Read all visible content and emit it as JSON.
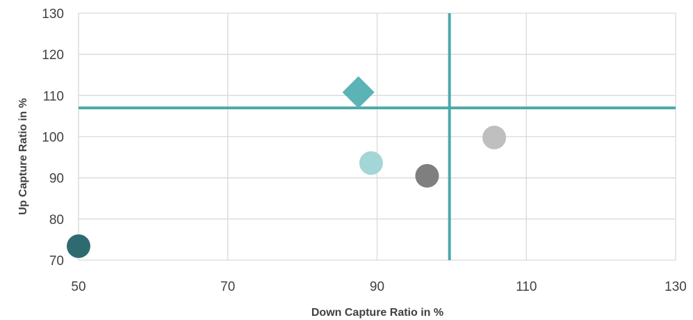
{
  "chart_data": {
    "type": "scatter",
    "xlabel": "Down Capture Ratio in %",
    "ylabel": "Up Capture Ratio in %",
    "xlim": [
      50,
      130
    ],
    "ylim": [
      70,
      130
    ],
    "xticks": [
      "50",
      "70",
      "90",
      "110",
      "130"
    ],
    "yticks": [
      "70",
      "80",
      "90",
      "100",
      "110",
      "120",
      "130"
    ],
    "grid": true,
    "reference_lines": {
      "vertical_x": 99.7,
      "horizontal_y": 107,
      "color": "#4BA9A9"
    },
    "points": [
      {
        "x": 87.5,
        "y": 110.8,
        "marker": "diamond",
        "color": "#5BB3B5"
      },
      {
        "x": 89.2,
        "y": 93.6,
        "marker": "circle",
        "color": "#A3D6D6"
      },
      {
        "x": 96.7,
        "y": 90.5,
        "marker": "circle",
        "color": "#7F7F7F"
      },
      {
        "x": 105.7,
        "y": 99.8,
        "marker": "circle",
        "color": "#BFBFBF"
      },
      {
        "x": 50.0,
        "y": 73.4,
        "marker": "circle",
        "color": "#2E6B70"
      }
    ]
  }
}
